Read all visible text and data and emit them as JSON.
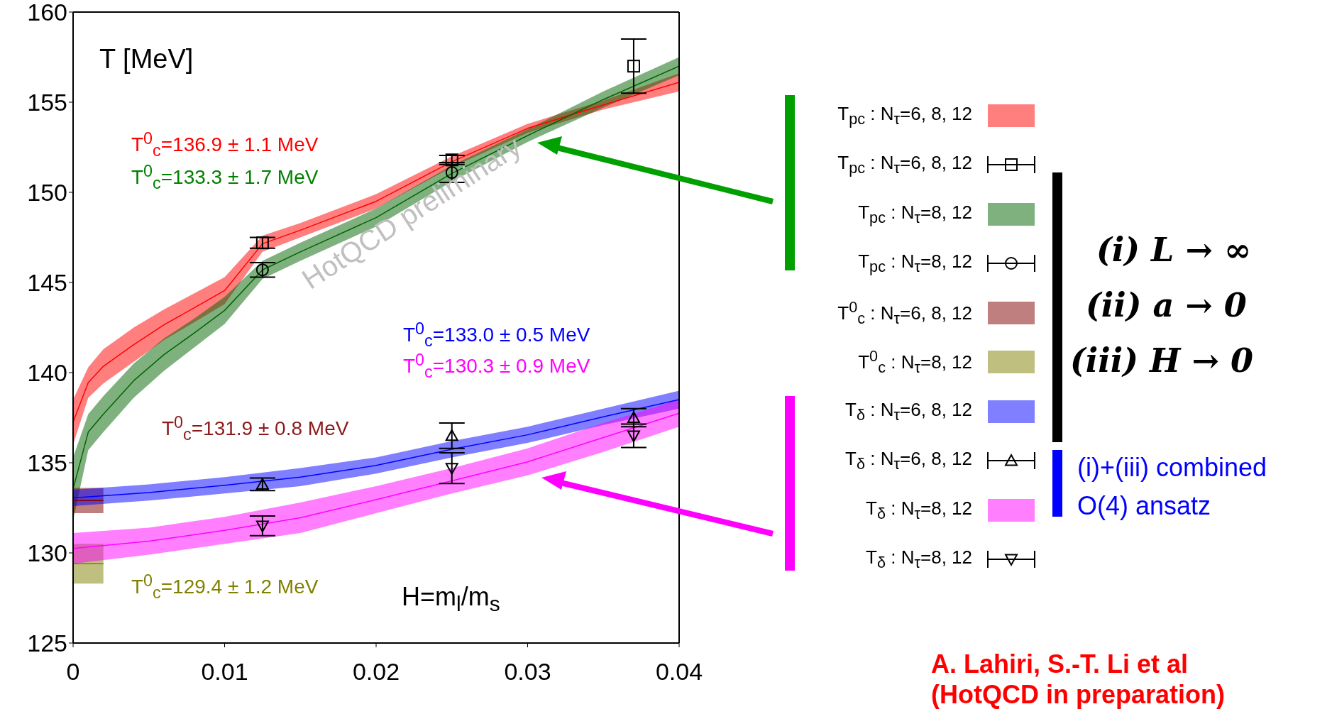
{
  "chart_data": {
    "type": "line",
    "xlabel": "H=m$_{l}$/m$_{s}$",
    "ylabel": "T [MeV]",
    "xlim": [
      0,
      0.04
    ],
    "xticks": [
      0,
      0.01,
      0.02,
      0.03,
      0.04
    ],
    "ylim": [
      125,
      160
    ],
    "yticks": [
      125,
      130,
      135,
      140,
      145,
      150,
      155,
      160
    ],
    "grid": false,
    "legend": "right",
    "series": [
      {
        "type": "line",
        "name": "T$_{pc}$ : N$_{τ}$=6, 8, 12",
        "color": "#ff0000",
        "x": [
          0,
          0.001,
          0.002,
          0.004,
          0.006,
          0.008,
          0.01,
          0.0125,
          0.015,
          0.02,
          0.025,
          0.03,
          0.035,
          0.04
        ],
        "values": [
          137.25,
          139.45,
          140.35,
          141.55,
          142.65,
          143.6,
          144.55,
          147.15,
          147.9,
          149.5,
          151.7,
          153.55,
          154.85,
          156.1
        ],
        "lower": [
          136.0,
          138.6,
          139.4,
          140.6,
          141.8,
          142.8,
          143.8,
          146.7,
          147.5,
          149.1,
          151.4,
          153.3,
          154.6,
          155.6
        ],
        "upper": [
          138.5,
          140.3,
          141.3,
          142.5,
          143.5,
          144.4,
          145.3,
          147.6,
          148.3,
          149.9,
          152.0,
          153.8,
          155.1,
          156.6
        ]
      },
      {
        "type": "scatter",
        "name": "T$_{pc}$ : N$_{τ}$=6, 8, 12",
        "color": "#000000",
        "marker": "square",
        "x": [
          0.0125,
          0.025,
          0.037
        ],
        "values": [
          147.2,
          151.8,
          157.0
        ],
        "errors": [
          0.3,
          0.25,
          1.5
        ]
      },
      {
        "type": "line",
        "name": "T$_{pc}$ : N$_{τ}$=8, 12",
        "color": "#006400",
        "x": [
          0,
          0.001,
          0.002,
          0.004,
          0.006,
          0.008,
          0.01,
          0.0125,
          0.015,
          0.02,
          0.025,
          0.03,
          0.035,
          0.04
        ],
        "values": [
          133.55,
          136.7,
          137.7,
          139.55,
          141.0,
          142.2,
          143.45,
          145.7,
          146.7,
          148.6,
          151.05,
          153.15,
          155.15,
          157.0
        ],
        "lower": [
          131.8,
          135.7,
          136.7,
          138.6,
          140.1,
          141.4,
          142.7,
          145.2,
          146.2,
          148.1,
          150.6,
          152.8,
          154.7,
          156.5
        ],
        "upper": [
          135.3,
          137.7,
          138.7,
          140.5,
          141.9,
          143.0,
          144.2,
          146.2,
          147.2,
          149.1,
          151.5,
          153.5,
          155.6,
          157.5
        ]
      },
      {
        "type": "scatter",
        "name": "T$_{pc}$ : N$_{τ}$=8, 12",
        "color": "#000000",
        "marker": "circle",
        "x": [
          0.0125,
          0.025
        ],
        "values": [
          145.7,
          151.1
        ],
        "errors": [
          0.4,
          0.55
        ]
      },
      {
        "type": "line",
        "name": "T$^{0}$$_{c}$ : N$_{τ}$=6, 8, 12",
        "color": "#800000",
        "x": [
          0,
          0.002
        ],
        "values": [
          132.9,
          132.9
        ],
        "lower": [
          132.2,
          132.2
        ],
        "upper": [
          133.6,
          133.6
        ]
      },
      {
        "type": "line",
        "name": "T$^{0}$$_{c}$ : N$_{τ}$=8, 12",
        "color": "#808000",
        "x": [
          0,
          0.002
        ],
        "values": [
          129.4,
          129.4
        ],
        "lower": [
          128.3,
          128.3
        ],
        "upper": [
          130.5,
          130.5
        ]
      },
      {
        "type": "line",
        "name": "T$_{δ}$ : N$_{τ}$=6, 8, 12",
        "color": "#0000ff",
        "x": [
          0,
          0.005,
          0.01,
          0.015,
          0.02,
          0.025,
          0.03,
          0.035,
          0.04
        ],
        "values": [
          133.05,
          133.35,
          133.75,
          134.2,
          134.85,
          135.75,
          136.55,
          137.55,
          138.5
        ],
        "lower": [
          132.6,
          132.9,
          133.3,
          133.7,
          134.4,
          135.3,
          136.1,
          137.1,
          138.0
        ],
        "upper": [
          133.5,
          133.8,
          134.2,
          134.7,
          135.3,
          136.2,
          137.0,
          138.0,
          139.0
        ]
      },
      {
        "type": "scatter",
        "name": "T$_{δ}$ : N$_{τ}$=6, 8, 12",
        "color": "#000000",
        "marker": "triangle",
        "x": [
          0.0125,
          0.025,
          0.037
        ],
        "values": [
          133.8,
          136.5,
          137.5
        ],
        "errors": [
          0.35,
          0.7,
          0.5
        ]
      },
      {
        "type": "line",
        "name": "T$_{δ}$ : N$_{τ}$=8, 12",
        "color": "#ff00ff",
        "x": [
          0,
          0.005,
          0.01,
          0.015,
          0.02,
          0.025,
          0.03,
          0.035,
          0.04
        ],
        "values": [
          130.25,
          130.65,
          131.25,
          131.95,
          132.95,
          134.0,
          135.05,
          136.4,
          137.75
        ],
        "lower": [
          129.4,
          129.9,
          130.5,
          131.1,
          132.2,
          133.3,
          134.3,
          135.6,
          137.0
        ],
        "upper": [
          131.1,
          131.4,
          132.0,
          132.8,
          133.7,
          134.7,
          135.8,
          137.2,
          138.5
        ]
      },
      {
        "type": "scatter",
        "name": "T$_{δ}$ : N$_{τ}$=8, 12",
        "color": "#000000",
        "marker": "triangle-down",
        "x": [
          0.0125,
          0.025,
          0.037
        ],
        "values": [
          131.5,
          134.7,
          136.5
        ],
        "errors": [
          0.55,
          0.85,
          0.65
        ]
      }
    ],
    "annotations": [
      "T$^{0}$$_{c}$=136.9 ± 1.1 MeV",
      "T$^{0}$$_{c}$=133.3 ± 1.7 MeV",
      "T$^{0}$$_{c}$=133.0 ± 0.5 MeV",
      "T$^{0}$$_{c}$=130.3 ± 0.9 MeV",
      "T$^{0}$$_{c}$=131.9 ± 0.8 MeV",
      "T$^{0}$$_{c}$=129.4 ± 1.2 MeV",
      "HotQCD preliminary",
      "(i) L → ∞",
      "(ii) a → 0",
      "(iii) H → 0",
      "(i)+(iii) combined",
      "O(4) ansatz",
      "A. Lahiri, S.-T. Li et al",
      "(HotQCD in preparation)"
    ]
  }
}
